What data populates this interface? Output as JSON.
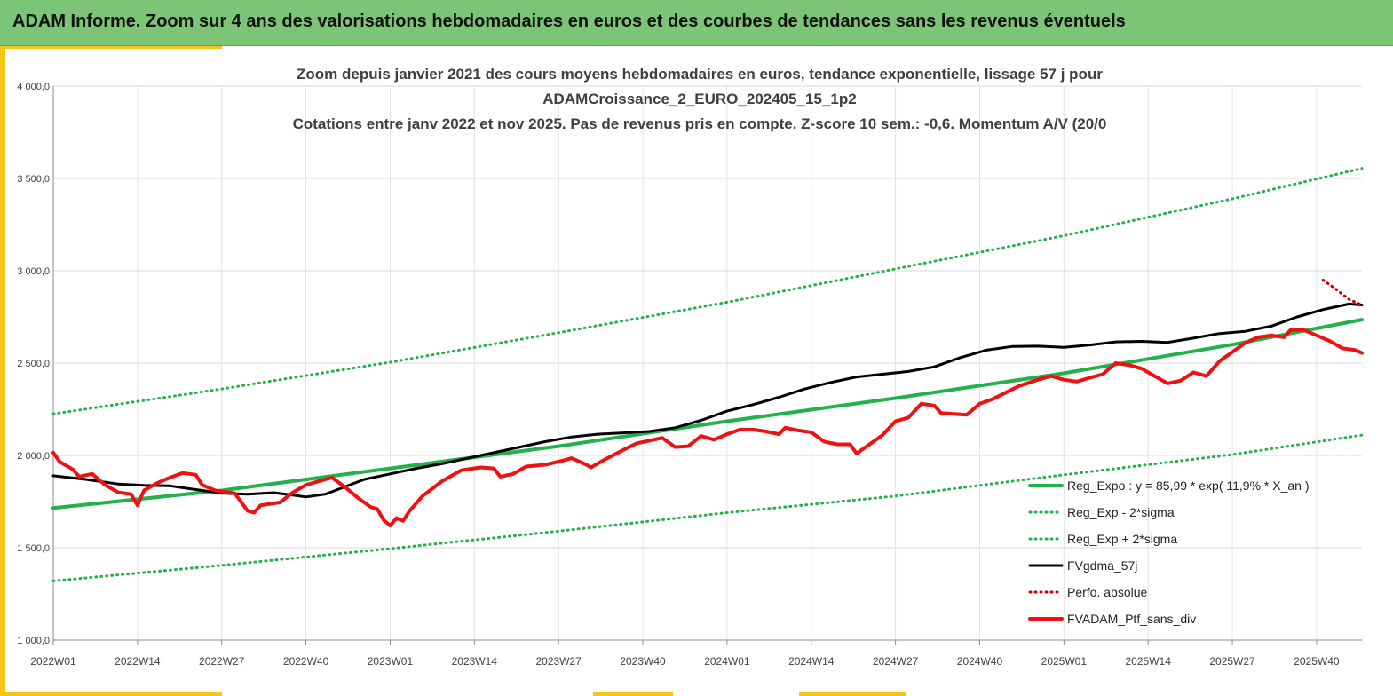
{
  "banner": {
    "title": "ADAM Informe. Zoom sur 4 ans des valorisations hebdomadaires en euros et des courbes de tendances sans les revenus éventuels"
  },
  "colors": {
    "banner_bg": "#7cc576",
    "accent": "#f5c518",
    "reg_expo": "#22b14c",
    "fvgdma": "#000000",
    "ptf": "#ee1111",
    "perfo": "#cc0000"
  },
  "chart_data": {
    "type": "line",
    "title_lines": [
      "Zoom depuis janvier 2021 des cours moyens hebdomadaires  en euros, tendance exponentielle, lissage 57 j pour",
      "ADAMCroissance_2_EURO_202405_15_1p2",
      "Cotations  entre janv 2022 et nov 2025. Pas de revenus pris en compte. Z-score 10 sem.: -0,6. Momentum  A/V (20/0"
    ],
    "x_week_range": [
      0,
      202
    ],
    "ylim": [
      1000,
      4000
    ],
    "y_ticks": [
      {
        "value": 1000,
        "label": "1 000,0"
      },
      {
        "value": 1500,
        "label": "1 500,0"
      },
      {
        "value": 2000,
        "label": "2 000,0"
      },
      {
        "value": 2500,
        "label": "2 500,0"
      },
      {
        "value": 3000,
        "label": "3 000,0"
      },
      {
        "value": 3500,
        "label": "3 500,0"
      },
      {
        "value": 4000,
        "label": "4 000,0"
      }
    ],
    "x_ticks": [
      {
        "week": 0,
        "label": "2022W01"
      },
      {
        "week": 13,
        "label": "2022W14"
      },
      {
        "week": 26,
        "label": "2022W27"
      },
      {
        "week": 39,
        "label": "2022W40"
      },
      {
        "week": 52,
        "label": "2023W01"
      },
      {
        "week": 65,
        "label": "2023W14"
      },
      {
        "week": 78,
        "label": "2023W27"
      },
      {
        "week": 91,
        "label": "2023W40"
      },
      {
        "week": 104,
        "label": "2024W01"
      },
      {
        "week": 117,
        "label": "2024W14"
      },
      {
        "week": 130,
        "label": "2024W27"
      },
      {
        "week": 143,
        "label": "2024W40"
      },
      {
        "week": 156,
        "label": "2025W01"
      },
      {
        "week": 169,
        "label": "2025W14"
      },
      {
        "week": 182,
        "label": "2025W27"
      },
      {
        "week": 195,
        "label": "2025W40"
      }
    ],
    "grid": {
      "vertical": true,
      "horizontal": true
    },
    "legend_position": "bottom-right",
    "series": [
      {
        "name": "Reg_Expo : y = 85,99 * exp( 11,9% *  X_an )",
        "style": "solid",
        "color": "#22b14c",
        "width": 4,
        "points": [
          [
            0,
            1715
          ],
          [
            26,
            1810
          ],
          [
            52,
            1930
          ],
          [
            78,
            2050
          ],
          [
            104,
            2185
          ],
          [
            130,
            2310
          ],
          [
            156,
            2445
          ],
          [
            182,
            2600
          ],
          [
            202,
            2735
          ]
        ]
      },
      {
        "name": "Reg_Exp - 2*sigma",
        "style": "dotted",
        "color": "#22b14c",
        "width": 3,
        "points": [
          [
            0,
            1320
          ],
          [
            26,
            1405
          ],
          [
            52,
            1495
          ],
          [
            78,
            1590
          ],
          [
            104,
            1690
          ],
          [
            130,
            1780
          ],
          [
            156,
            1895
          ],
          [
            182,
            2005
          ],
          [
            202,
            2110
          ]
        ]
      },
      {
        "name": "Reg_Exp + 2*sigma",
        "style": "dotted",
        "color": "#22b14c",
        "width": 3,
        "points": [
          [
            0,
            2225
          ],
          [
            26,
            2360
          ],
          [
            52,
            2505
          ],
          [
            78,
            2665
          ],
          [
            104,
            2830
          ],
          [
            130,
            3010
          ],
          [
            156,
            3190
          ],
          [
            182,
            3390
          ],
          [
            202,
            3555
          ]
        ]
      },
      {
        "name": "FVgdma_57j",
        "style": "solid",
        "color": "#000000",
        "width": 3,
        "points": [
          [
            0,
            1890
          ],
          [
            5,
            1870
          ],
          [
            10,
            1845
          ],
          [
            14,
            1838
          ],
          [
            18,
            1835
          ],
          [
            22,
            1815
          ],
          [
            26,
            1795
          ],
          [
            30,
            1790
          ],
          [
            34,
            1798
          ],
          [
            37,
            1785
          ],
          [
            39,
            1775
          ],
          [
            42,
            1790
          ],
          [
            45,
            1830
          ],
          [
            48,
            1870
          ],
          [
            52,
            1900
          ],
          [
            56,
            1930
          ],
          [
            60,
            1955
          ],
          [
            64,
            1985
          ],
          [
            68,
            2015
          ],
          [
            72,
            2045
          ],
          [
            76,
            2075
          ],
          [
            80,
            2100
          ],
          [
            84,
            2115
          ],
          [
            88,
            2122
          ],
          [
            92,
            2130
          ],
          [
            96,
            2150
          ],
          [
            100,
            2190
          ],
          [
            104,
            2240
          ],
          [
            108,
            2275
          ],
          [
            112,
            2315
          ],
          [
            116,
            2360
          ],
          [
            120,
            2395
          ],
          [
            124,
            2425
          ],
          [
            128,
            2440
          ],
          [
            132,
            2455
          ],
          [
            136,
            2480
          ],
          [
            140,
            2530
          ],
          [
            144,
            2570
          ],
          [
            148,
            2590
          ],
          [
            152,
            2592
          ],
          [
            156,
            2585
          ],
          [
            160,
            2598
          ],
          [
            164,
            2615
          ],
          [
            168,
            2618
          ],
          [
            172,
            2612
          ],
          [
            176,
            2635
          ],
          [
            180,
            2660
          ],
          [
            184,
            2672
          ],
          [
            188,
            2700
          ],
          [
            192,
            2750
          ],
          [
            196,
            2790
          ],
          [
            200,
            2820
          ],
          [
            202,
            2815
          ]
        ]
      },
      {
        "name": "Perfo. absolue",
        "style": "dotted",
        "color": "#cc0000",
        "width": 3,
        "points": [
          [
            196,
            2950
          ],
          [
            198,
            2900
          ],
          [
            200,
            2845
          ],
          [
            202,
            2815
          ]
        ]
      },
      {
        "name": "FVADAM_Ptf_sans_div",
        "style": "solid",
        "color": "#ee1111",
        "width": 4,
        "points": [
          [
            0,
            2015
          ],
          [
            1,
            1965
          ],
          [
            3,
            1925
          ],
          [
            4,
            1885
          ],
          [
            6,
            1900
          ],
          [
            8,
            1840
          ],
          [
            10,
            1800
          ],
          [
            12,
            1790
          ],
          [
            13,
            1730
          ],
          [
            14,
            1810
          ],
          [
            16,
            1850
          ],
          [
            18,
            1880
          ],
          [
            20,
            1905
          ],
          [
            22,
            1895
          ],
          [
            23,
            1840
          ],
          [
            25,
            1810
          ],
          [
            28,
            1795
          ],
          [
            30,
            1700
          ],
          [
            31,
            1690
          ],
          [
            32,
            1730
          ],
          [
            35,
            1745
          ],
          [
            37,
            1800
          ],
          [
            39,
            1840
          ],
          [
            41,
            1860
          ],
          [
            43,
            1880
          ],
          [
            45,
            1830
          ],
          [
            47,
            1770
          ],
          [
            49,
            1720
          ],
          [
            50,
            1710
          ],
          [
            51,
            1650
          ],
          [
            52,
            1620
          ],
          [
            53,
            1660
          ],
          [
            54,
            1645
          ],
          [
            55,
            1700
          ],
          [
            57,
            1780
          ],
          [
            60,
            1860
          ],
          [
            63,
            1920
          ],
          [
            66,
            1935
          ],
          [
            68,
            1930
          ],
          [
            69,
            1885
          ],
          [
            71,
            1900
          ],
          [
            73,
            1940
          ],
          [
            76,
            1950
          ],
          [
            79,
            1975
          ],
          [
            80,
            1985
          ],
          [
            82,
            1955
          ],
          [
            83,
            1935
          ],
          [
            85,
            1975
          ],
          [
            88,
            2030
          ],
          [
            90,
            2065
          ],
          [
            92,
            2080
          ],
          [
            94,
            2095
          ],
          [
            96,
            2045
          ],
          [
            98,
            2050
          ],
          [
            100,
            2105
          ],
          [
            102,
            2085
          ],
          [
            104,
            2115
          ],
          [
            106,
            2140
          ],
          [
            108,
            2140
          ],
          [
            110,
            2130
          ],
          [
            112,
            2115
          ],
          [
            113,
            2150
          ],
          [
            115,
            2135
          ],
          [
            117,
            2125
          ],
          [
            119,
            2075
          ],
          [
            121,
            2060
          ],
          [
            123,
            2060
          ],
          [
            124,
            2010
          ],
          [
            126,
            2060
          ],
          [
            128,
            2110
          ],
          [
            130,
            2185
          ],
          [
            132,
            2205
          ],
          [
            134,
            2280
          ],
          [
            136,
            2270
          ],
          [
            137,
            2230
          ],
          [
            139,
            2225
          ],
          [
            141,
            2220
          ],
          [
            143,
            2280
          ],
          [
            145,
            2305
          ],
          [
            147,
            2340
          ],
          [
            149,
            2375
          ],
          [
            152,
            2410
          ],
          [
            154,
            2430
          ],
          [
            156,
            2410
          ],
          [
            158,
            2400
          ],
          [
            160,
            2420
          ],
          [
            162,
            2440
          ],
          [
            164,
            2500
          ],
          [
            166,
            2490
          ],
          [
            168,
            2470
          ],
          [
            170,
            2430
          ],
          [
            172,
            2390
          ],
          [
            174,
            2405
          ],
          [
            176,
            2450
          ],
          [
            178,
            2430
          ],
          [
            180,
            2510
          ],
          [
            182,
            2560
          ],
          [
            184,
            2610
          ],
          [
            186,
            2640
          ],
          [
            188,
            2650
          ],
          [
            190,
            2640
          ],
          [
            191,
            2680
          ],
          [
            193,
            2680
          ],
          [
            195,
            2650
          ],
          [
            197,
            2620
          ],
          [
            199,
            2580
          ],
          [
            201,
            2570
          ],
          [
            202,
            2555
          ]
        ]
      }
    ]
  }
}
